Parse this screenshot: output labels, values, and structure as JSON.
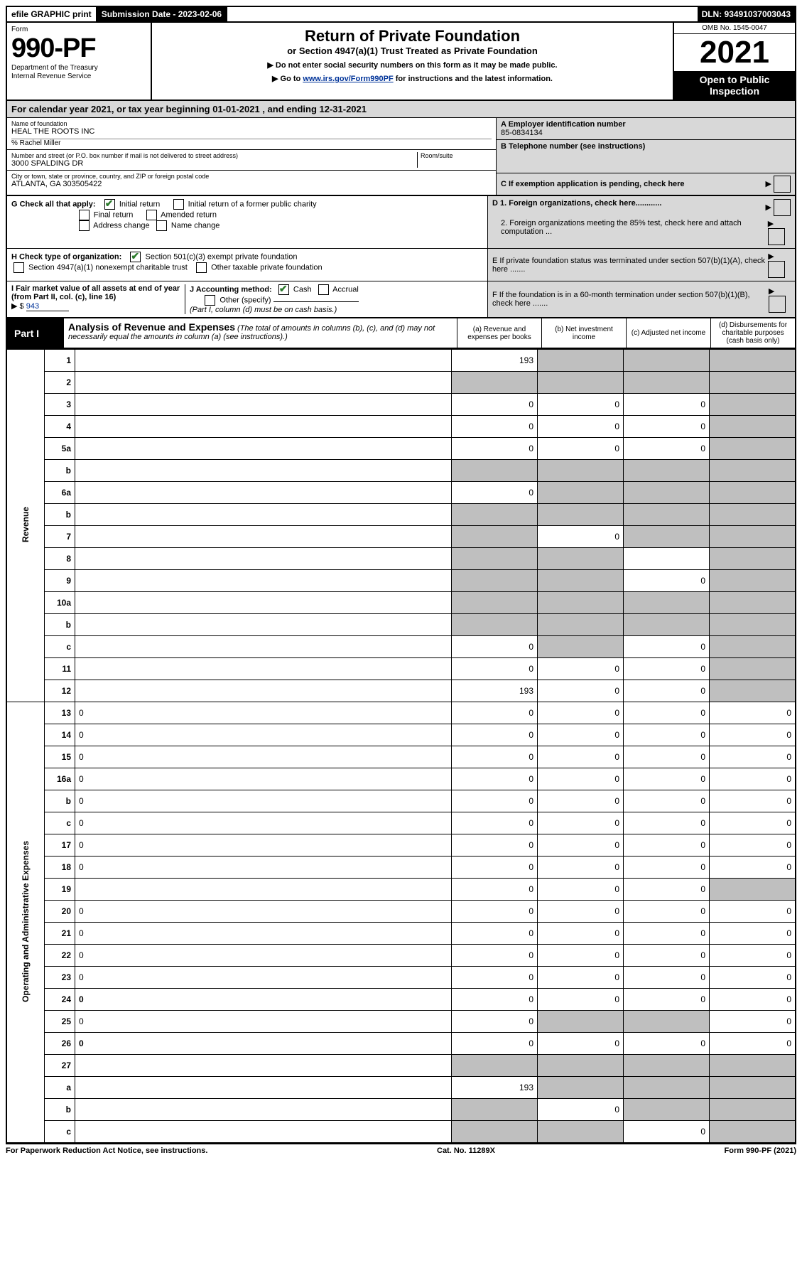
{
  "topbar": {
    "efile": "efile GRAPHIC print",
    "submission_label": "Submission Date - 2023-02-06",
    "dln": "DLN: 93491037003043"
  },
  "form": {
    "form_word": "Form",
    "number": "990-PF",
    "dept1": "Department of the Treasury",
    "dept2": "Internal Revenue Service"
  },
  "title": {
    "main": "Return of Private Foundation",
    "sub": "or Section 4947(a)(1) Trust Treated as Private Foundation",
    "instr1": "▶ Do not enter social security numbers on this form as it may be made public.",
    "instr2_pre": "▶ Go to ",
    "instr2_link": "www.irs.gov/Form990PF",
    "instr2_post": " for instructions and the latest information."
  },
  "yearbox": {
    "omb": "OMB No. 1545-0047",
    "year": "2021",
    "open": "Open to Public Inspection"
  },
  "cal_year": "For calendar year 2021, or tax year beginning 01-01-2021          , and ending 12-31-2021",
  "info": {
    "name_lbl": "Name of foundation",
    "name": "HEAL THE ROOTS INC",
    "care_of": "% Rachel Miller",
    "street_lbl": "Number and street (or P.O. box number if mail is not delivered to street address)",
    "street": "3000 SPALDING DR",
    "room_lbl": "Room/suite",
    "city_lbl": "City or town, state or province, country, and ZIP or foreign postal code",
    "city": "ATLANTA, GA  303505422",
    "a_lbl": "A Employer identification number",
    "a_val": "85-0834134",
    "b_lbl": "B Telephone number (see instructions)",
    "c_lbl": "C If exemption application is pending, check here"
  },
  "g": {
    "label": "G Check all that apply:",
    "initial": "Initial return",
    "initial_former": "Initial return of a former public charity",
    "final": "Final return",
    "amended": "Amended return",
    "address": "Address change",
    "name": "Name change"
  },
  "h": {
    "label": "H Check type of organization:",
    "c3": "Section 501(c)(3) exempt private foundation",
    "nonexempt": "Section 4947(a)(1) nonexempt charitable trust",
    "other_tax": "Other taxable private foundation"
  },
  "d": {
    "d1": "D 1. Foreign organizations, check here............",
    "d2": "2. Foreign organizations meeting the 85% test, check here and attach computation ..."
  },
  "e": "E  If private foundation status was terminated under section 507(b)(1)(A), check here .......",
  "f": "F  If the foundation is in a 60-month termination under section 507(b)(1)(B), check here .......",
  "i": {
    "label": "I Fair market value of all assets at end of year (from Part II, col. (c), line 16)",
    "val": "943"
  },
  "j": {
    "label": "J Accounting method:",
    "cash": "Cash",
    "accrual": "Accrual",
    "other": "Other (specify)",
    "note": "(Part I, column (d) must be on cash basis.)"
  },
  "part1": {
    "label": "Part I",
    "title": "Analysis of Revenue and Expenses",
    "note": "(The total of amounts in columns (b), (c), and (d) may not necessarily equal the amounts in column (a) (see instructions).)",
    "col_a": "(a)  Revenue and expenses per books",
    "col_b": "(b)  Net investment income",
    "col_c": "(c)  Adjusted net income",
    "col_d": "(d)  Disbursements for charitable purposes (cash basis only)"
  },
  "sections": {
    "rev": "Revenue",
    "exp": "Operating and Administrative Expenses"
  },
  "rows": [
    {
      "n": "1",
      "d": "",
      "a": "193",
      "b": "",
      "c": "",
      "grey": [
        "b",
        "c",
        "d"
      ]
    },
    {
      "n": "2",
      "d": "",
      "a": "",
      "b": "",
      "c": "",
      "grey": [
        "a",
        "b",
        "c",
        "d"
      ],
      "bold": false
    },
    {
      "n": "3",
      "d": "",
      "a": "0",
      "b": "0",
      "c": "0",
      "grey": [
        "d"
      ]
    },
    {
      "n": "4",
      "d": "",
      "a": "0",
      "b": "0",
      "c": "0",
      "grey": [
        "d"
      ]
    },
    {
      "n": "5a",
      "d": "",
      "a": "0",
      "b": "0",
      "c": "0",
      "grey": [
        "d"
      ]
    },
    {
      "n": "b",
      "d": "",
      "a": "",
      "b": "",
      "c": "",
      "grey": [
        "a",
        "b",
        "c",
        "d"
      ]
    },
    {
      "n": "6a",
      "d": "",
      "a": "0",
      "b": "",
      "c": "",
      "grey": [
        "b",
        "c",
        "d"
      ]
    },
    {
      "n": "b",
      "d": "",
      "a": "",
      "b": "",
      "c": "",
      "grey": [
        "a",
        "b",
        "c",
        "d"
      ]
    },
    {
      "n": "7",
      "d": "",
      "a": "",
      "b": "0",
      "c": "",
      "grey": [
        "a",
        "c",
        "d"
      ]
    },
    {
      "n": "8",
      "d": "",
      "a": "",
      "b": "",
      "c": "",
      "grey": [
        "a",
        "b",
        "d"
      ]
    },
    {
      "n": "9",
      "d": "",
      "a": "",
      "b": "",
      "c": "0",
      "grey": [
        "a",
        "b",
        "d"
      ]
    },
    {
      "n": "10a",
      "d": "",
      "a": "",
      "b": "",
      "c": "",
      "grey": [
        "a",
        "b",
        "c",
        "d"
      ]
    },
    {
      "n": "b",
      "d": "",
      "a": "",
      "b": "",
      "c": "",
      "grey": [
        "a",
        "b",
        "c",
        "d"
      ]
    },
    {
      "n": "c",
      "d": "",
      "a": "0",
      "b": "",
      "c": "0",
      "grey": [
        "b",
        "d"
      ]
    },
    {
      "n": "11",
      "d": "",
      "a": "0",
      "b": "0",
      "c": "0",
      "grey": [
        "d"
      ]
    },
    {
      "n": "12",
      "d": "",
      "a": "193",
      "b": "0",
      "c": "0",
      "grey": [
        "d"
      ],
      "bold": true
    },
    {
      "n": "13",
      "d": "0",
      "a": "0",
      "b": "0",
      "c": "0"
    },
    {
      "n": "14",
      "d": "0",
      "a": "0",
      "b": "0",
      "c": "0"
    },
    {
      "n": "15",
      "d": "0",
      "a": "0",
      "b": "0",
      "c": "0"
    },
    {
      "n": "16a",
      "d": "0",
      "a": "0",
      "b": "0",
      "c": "0"
    },
    {
      "n": "b",
      "d": "0",
      "a": "0",
      "b": "0",
      "c": "0"
    },
    {
      "n": "c",
      "d": "0",
      "a": "0",
      "b": "0",
      "c": "0"
    },
    {
      "n": "17",
      "d": "0",
      "a": "0",
      "b": "0",
      "c": "0"
    },
    {
      "n": "18",
      "d": "0",
      "a": "0",
      "b": "0",
      "c": "0"
    },
    {
      "n": "19",
      "d": "",
      "a": "0",
      "b": "0",
      "c": "0",
      "grey": [
        "d"
      ]
    },
    {
      "n": "20",
      "d": "0",
      "a": "0",
      "b": "0",
      "c": "0"
    },
    {
      "n": "21",
      "d": "0",
      "a": "0",
      "b": "0",
      "c": "0"
    },
    {
      "n": "22",
      "d": "0",
      "a": "0",
      "b": "0",
      "c": "0"
    },
    {
      "n": "23",
      "d": "0",
      "a": "0",
      "b": "0",
      "c": "0"
    },
    {
      "n": "24",
      "d": "0",
      "a": "0",
      "b": "0",
      "c": "0",
      "bold": true
    },
    {
      "n": "25",
      "d": "0",
      "a": "0",
      "b": "",
      "c": "",
      "grey": [
        "b",
        "c"
      ]
    },
    {
      "n": "26",
      "d": "0",
      "a": "0",
      "b": "0",
      "c": "0",
      "bold": true
    },
    {
      "n": "27",
      "d": "",
      "a": "",
      "b": "",
      "c": "",
      "grey": [
        "a",
        "b",
        "c",
        "d"
      ]
    },
    {
      "n": "a",
      "d": "",
      "a": "193",
      "b": "",
      "c": "",
      "grey": [
        "b",
        "c",
        "d"
      ],
      "bold": true
    },
    {
      "n": "b",
      "d": "",
      "a": "",
      "b": "0",
      "c": "",
      "grey": [
        "a",
        "c",
        "d"
      ],
      "bold": true
    },
    {
      "n": "c",
      "d": "",
      "a": "",
      "b": "",
      "c": "0",
      "grey": [
        "a",
        "b",
        "d"
      ],
      "bold": true
    }
  ],
  "footer": {
    "left": "For Paperwork Reduction Act Notice, see instructions.",
    "mid": "Cat. No. 11289X",
    "right": "Form 990-PF (2021)"
  },
  "colors": {
    "link": "#003399",
    "check_green": "#2b7a2b",
    "grey_cell": "#bfbfbf",
    "shaded": "#d8d8d8"
  }
}
